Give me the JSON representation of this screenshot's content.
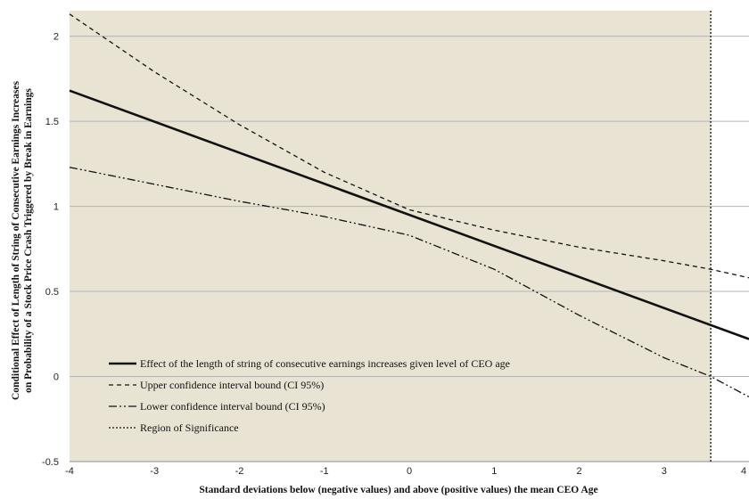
{
  "chart_data": {
    "type": "line",
    "xlabel": "Standard  deviations below (negative values) and  above (positive values) the mean CEO Age",
    "ylabel_lines": [
      "Conditional  Effect of Length of String of Consecutive Earnings Increases",
      "on Probability  of a Stock Price Crash Triggered  by Break in Earnings"
    ],
    "xlim": [
      -4,
      4
    ],
    "ylim": [
      -0.5,
      2.15
    ],
    "x_ticks": [
      "-4",
      "-3",
      "-2",
      "-1",
      "0",
      "1",
      "2",
      "3",
      "4"
    ],
    "y_ticks": [
      "-0.5",
      "0",
      "0.5",
      "1",
      "1.5",
      "2"
    ],
    "grid": true,
    "legend_position": "bottom-left",
    "colors": {
      "plot_bg": "#e8e3d3",
      "grid": "#b5b5b5",
      "line": "#111111"
    },
    "series": [
      {
        "name": "Effect of the length of string of consecutive earnings increases given level of CEO age",
        "style": "solid",
        "x": [
          -4,
          4
        ],
        "y": [
          1.68,
          0.22
        ]
      },
      {
        "name": "Upper confidence interval bound (CI 95%)",
        "style": "dashed",
        "x": [
          -4,
          -3,
          -2,
          -1,
          0,
          1,
          2,
          3,
          3.55,
          4
        ],
        "y": [
          2.13,
          1.79,
          1.48,
          1.2,
          0.98,
          0.86,
          0.76,
          0.68,
          0.63,
          0.58
        ]
      },
      {
        "name": "Lower confidence interval bound (CI 95%)",
        "style": "dashdotdot",
        "x": [
          -4,
          -3,
          -2,
          -1,
          0,
          1,
          2,
          3,
          3.55,
          4
        ],
        "y": [
          1.23,
          1.13,
          1.03,
          0.94,
          0.83,
          0.63,
          0.36,
          0.11,
          0.0,
          -0.12
        ]
      },
      {
        "name": "Region of Significance",
        "style": "dotted-vertical",
        "x": [
          3.55,
          3.55
        ],
        "y": [
          -0.5,
          2.15
        ]
      }
    ]
  }
}
